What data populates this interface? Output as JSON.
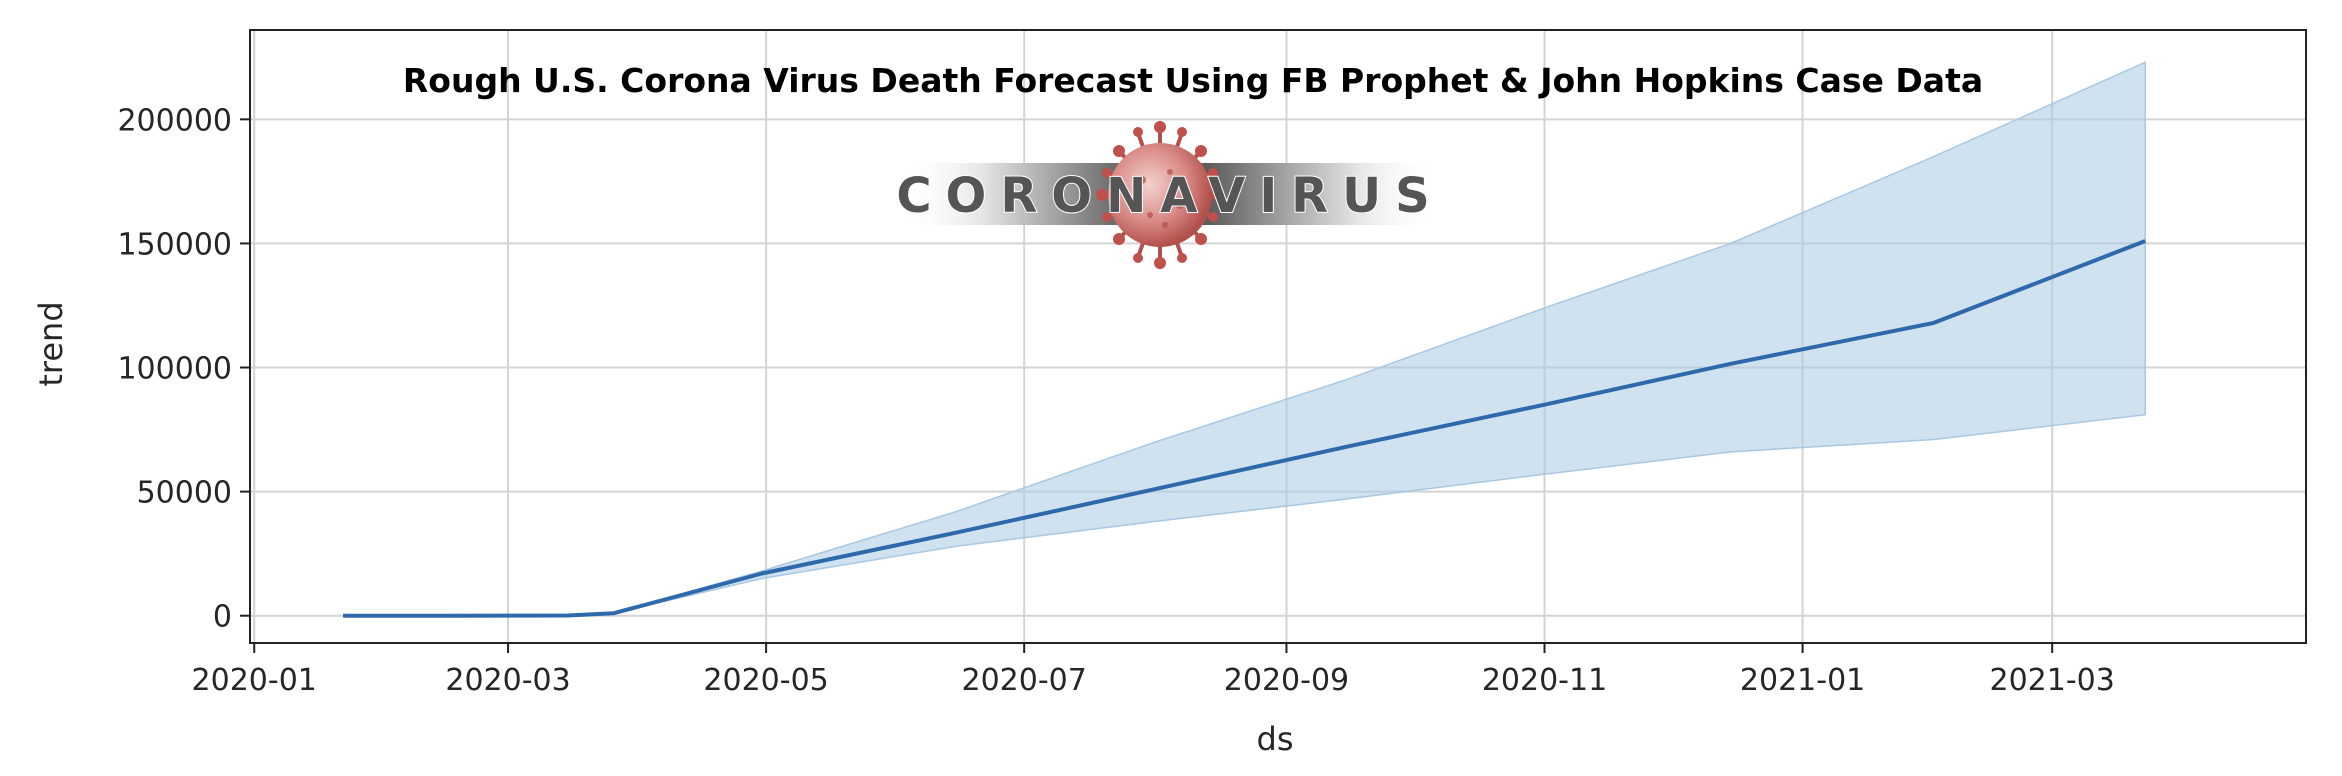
{
  "chart_data": {
    "type": "area",
    "title": "Rough U.S. Corona Virus Death Forecast Using FB Prophet & John Hopkins Case Data",
    "xlabel": "ds",
    "ylabel": "trend",
    "x_ticks": [
      "2020-01",
      "2020-03",
      "2020-05",
      "2020-07",
      "2020-09",
      "2020-11",
      "2021-01",
      "2021-03"
    ],
    "y_ticks": [
      0,
      50000,
      100000,
      150000,
      200000
    ],
    "xlim": [
      "2019-12-31",
      "2021-04-30"
    ],
    "ylim": [
      -11000,
      236000
    ],
    "grid": true,
    "colors": {
      "line": "#2e6aab",
      "band": "#a9c8e3"
    },
    "x": [
      "2020-01-22",
      "2020-02-15",
      "2020-03-15",
      "2020-03-26",
      "2020-04-30",
      "2020-06-15",
      "2020-08-01",
      "2020-09-15",
      "2020-11-01",
      "2020-12-15",
      "2021-02-01",
      "2021-03-23"
    ],
    "series": [
      {
        "role": "trend",
        "values": [
          0,
          0,
          100,
          1000,
          17000,
          33500,
          51000,
          68000,
          85000,
          101500,
          118000,
          151000
        ]
      },
      {
        "role": "upper",
        "values": [
          0,
          0,
          100,
          1000,
          18000,
          42000,
          70000,
          95000,
          124000,
          150000,
          185000,
          223000
        ]
      },
      {
        "role": "lower",
        "values": [
          0,
          0,
          100,
          1000,
          15000,
          28000,
          38000,
          47000,
          57000,
          66000,
          71000,
          81000
        ]
      }
    ]
  },
  "banner": {
    "text": "CORONAVIRUS",
    "icon": "virus-icon"
  }
}
